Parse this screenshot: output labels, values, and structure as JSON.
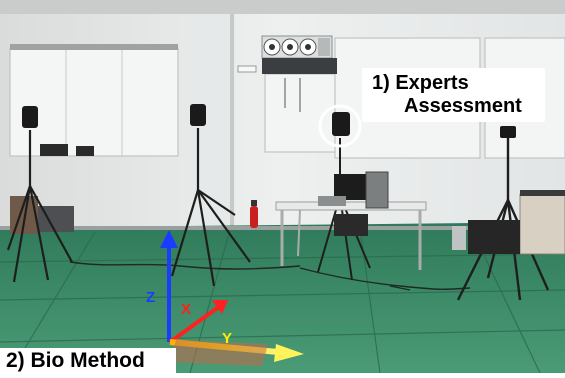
{
  "labels": {
    "experts_line1": "1) Experts",
    "experts_line2": "Assessment",
    "bio_method": "2) Bio Method"
  },
  "axes": {
    "z": "Z",
    "x": "X",
    "y": "Y"
  },
  "colors": {
    "floor": "#3f8f6c",
    "wall": "#e9ecec",
    "axis_z": "#1a3cff",
    "axis_x": "#ff2020",
    "axis_y": "#ffee00",
    "highlight_circle": "#ffffff"
  }
}
